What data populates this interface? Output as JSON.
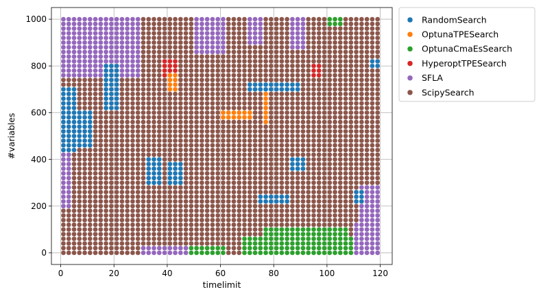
{
  "chart_data": {
    "type": "scatter",
    "title": "",
    "xlabel": "timelimit",
    "ylabel": "#variables",
    "xlim": [
      -3.5,
      124.5
    ],
    "ylim": [
      -50,
      1050
    ],
    "xticks": [
      0,
      20,
      40,
      60,
      80,
      100,
      120
    ],
    "yticks": [
      0,
      200,
      400,
      600,
      800,
      1000
    ],
    "xtick_labels": [
      "0",
      "20",
      "40",
      "60",
      "80",
      "100",
      "120"
    ],
    "ytick_labels": [
      "0",
      "200",
      "400",
      "600",
      "800",
      "1000"
    ],
    "grid": true,
    "legend_position": "outside-top-right",
    "x": [
      1,
      3,
      5,
      7,
      9,
      11,
      13,
      15,
      17,
      19,
      21,
      23,
      25,
      27,
      29,
      31,
      33,
      35,
      37,
      39,
      41,
      43,
      45,
      47,
      49,
      51,
      53,
      55,
      57,
      59,
      61,
      63,
      65,
      67,
      69,
      71,
      73,
      75,
      77,
      79,
      81,
      83,
      85,
      87,
      89,
      91,
      93,
      95,
      97,
      99,
      101,
      103,
      105,
      107,
      109,
      111,
      113,
      115,
      117,
      119
    ],
    "y_start": 0,
    "y_step": 20,
    "y_count": 51,
    "series": [
      {
        "name": "RandomSearch",
        "color": "#1f77b4"
      },
      {
        "name": "OptunaTPESearch",
        "color": "#ff7f0e"
      },
      {
        "name": "OptunaCmaEsSearch",
        "color": "#2ca02c"
      },
      {
        "name": "HyperoptTPESearch",
        "color": "#d62728"
      },
      {
        "name": "SFLA",
        "color": "#9467bd"
      },
      {
        "name": "ScipySearch",
        "color": "#8c564b"
      }
    ],
    "default_series": 5,
    "regions": [
      {
        "series": 4,
        "x": [
          1,
          28
        ],
        "y": [
          760,
          1000
        ]
      },
      {
        "series": 0,
        "x": [
          1,
          6
        ],
        "y": [
          440,
          700
        ]
      },
      {
        "series": 0,
        "x": [
          7,
          12
        ],
        "y": [
          460,
          600
        ]
      },
      {
        "series": 0,
        "x": [
          17,
          22
        ],
        "y": [
          620,
          800
        ]
      },
      {
        "series": 4,
        "x": [
          1,
          3
        ],
        "y": [
          200,
          420
        ]
      },
      {
        "series": 4,
        "x": [
          23,
          30
        ],
        "y": [
          760,
          1000
        ]
      },
      {
        "series": 4,
        "x": [
          31,
          48
        ],
        "y": [
          0,
          20
        ]
      },
      {
        "series": 2,
        "x": [
          49,
          62
        ],
        "y": [
          0,
          20
        ]
      },
      {
        "series": 2,
        "x": [
          69,
          110
        ],
        "y": [
          0,
          60
        ]
      },
      {
        "series": 2,
        "x": [
          77,
          108
        ],
        "y": [
          60,
          100
        ]
      },
      {
        "series": 4,
        "x": [
          111,
          120
        ],
        "y": [
          0,
          120
        ]
      },
      {
        "series": 4,
        "x": [
          113,
          120
        ],
        "y": [
          140,
          280
        ]
      },
      {
        "series": 0,
        "x": [
          33,
          38
        ],
        "y": [
          300,
          400
        ]
      },
      {
        "series": 0,
        "x": [
          41,
          46
        ],
        "y": [
          300,
          380
        ]
      },
      {
        "series": 3,
        "x": [
          39,
          44
        ],
        "y": [
          760,
          820
        ]
      },
      {
        "series": 1,
        "x": [
          41,
          44
        ],
        "y": [
          700,
          760
        ]
      },
      {
        "series": 1,
        "x": [
          61,
          72
        ],
        "y": [
          580,
          600
        ]
      },
      {
        "series": 1,
        "x": [
          77,
          78
        ],
        "y": [
          560,
          680
        ]
      },
      {
        "series": 0,
        "x": [
          71,
          90
        ],
        "y": [
          700,
          720
        ]
      },
      {
        "series": 0,
        "x": [
          75,
          86
        ],
        "y": [
          220,
          240
        ]
      },
      {
        "series": 0,
        "x": [
          87,
          92
        ],
        "y": [
          360,
          400
        ]
      },
      {
        "series": 4,
        "x": [
          51,
          62
        ],
        "y": [
          860,
          1000
        ]
      },
      {
        "series": 4,
        "x": [
          71,
          76
        ],
        "y": [
          900,
          1000
        ]
      },
      {
        "series": 4,
        "x": [
          87,
          92
        ],
        "y": [
          880,
          1000
        ]
      },
      {
        "series": 2,
        "x": [
          101,
          106
        ],
        "y": [
          980,
          1000
        ]
      },
      {
        "series": 3,
        "x": [
          95,
          98
        ],
        "y": [
          760,
          800
        ]
      },
      {
        "series": 0,
        "x": [
          111,
          114
        ],
        "y": [
          220,
          260
        ]
      },
      {
        "series": 0,
        "x": [
          117,
          120
        ],
        "y": [
          800,
          820
        ]
      }
    ]
  },
  "legend": {
    "items": [
      "RandomSearch",
      "OptunaTPESearch",
      "OptunaCmaEsSearch",
      "HyperoptTPESearch",
      "SFLA",
      "ScipySearch"
    ]
  }
}
